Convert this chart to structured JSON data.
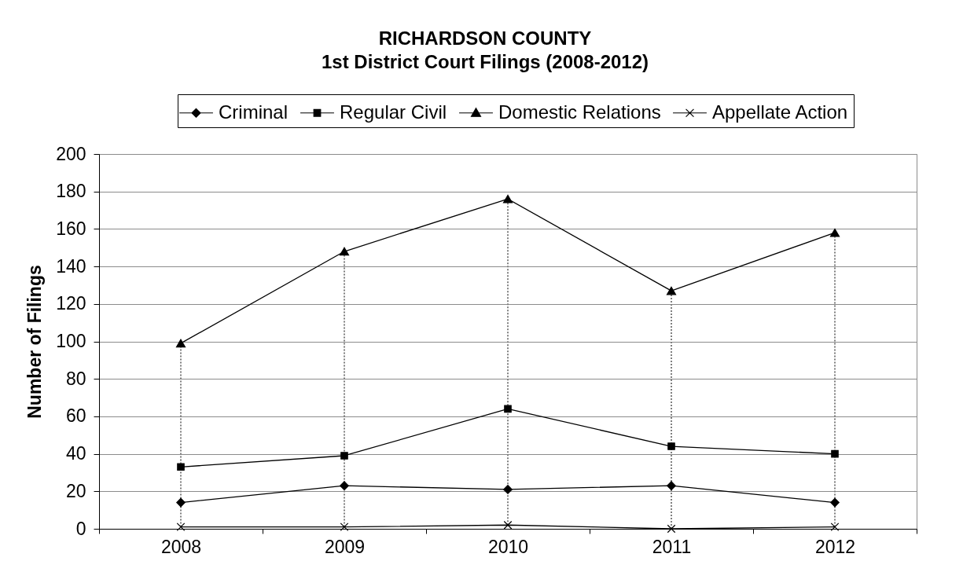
{
  "chart_data": {
    "type": "line",
    "title": "RICHARDSON COUNTY",
    "subtitle": "1st District Court Filings (2008-2012)",
    "ylabel": "Number of Filings",
    "categories": [
      "2008",
      "2009",
      "2010",
      "2011",
      "2012"
    ],
    "series": [
      {
        "name": "Criminal",
        "color": "#000000",
        "marker": "diamond",
        "values": [
          14,
          23,
          21,
          23,
          14
        ]
      },
      {
        "name": "Regular Civil",
        "color": "#000000",
        "marker": "square",
        "values": [
          33,
          39,
          64,
          44,
          40
        ]
      },
      {
        "name": "Domestic Relations",
        "color": "#000000",
        "marker": "triangle",
        "values": [
          99,
          148,
          176,
          127,
          158
        ]
      },
      {
        "name": "Appellate Action",
        "color": "#000000",
        "marker": "cross",
        "values": [
          1,
          1,
          2,
          0,
          1
        ]
      }
    ],
    "ylim": [
      0,
      200
    ],
    "yticks": [
      0,
      20,
      40,
      60,
      80,
      100,
      120,
      140,
      160,
      180,
      200
    ],
    "grid": "y",
    "legend": "top",
    "ref_lines": [
      {
        "axis": "x",
        "value": "2008",
        "line_style": "dotted",
        "color": "#808080"
      },
      {
        "axis": "x",
        "value": "2009",
        "line_style": "dotted",
        "color": "#808080"
      },
      {
        "axis": "x",
        "value": "2010",
        "line_style": "dotted",
        "color": "#808080"
      },
      {
        "axis": "x",
        "value": "2011",
        "line_style": "dotted",
        "color": "#808080"
      },
      {
        "axis": "x",
        "value": "2012",
        "line_style": "dotted",
        "color": "#808080"
      }
    ]
  }
}
